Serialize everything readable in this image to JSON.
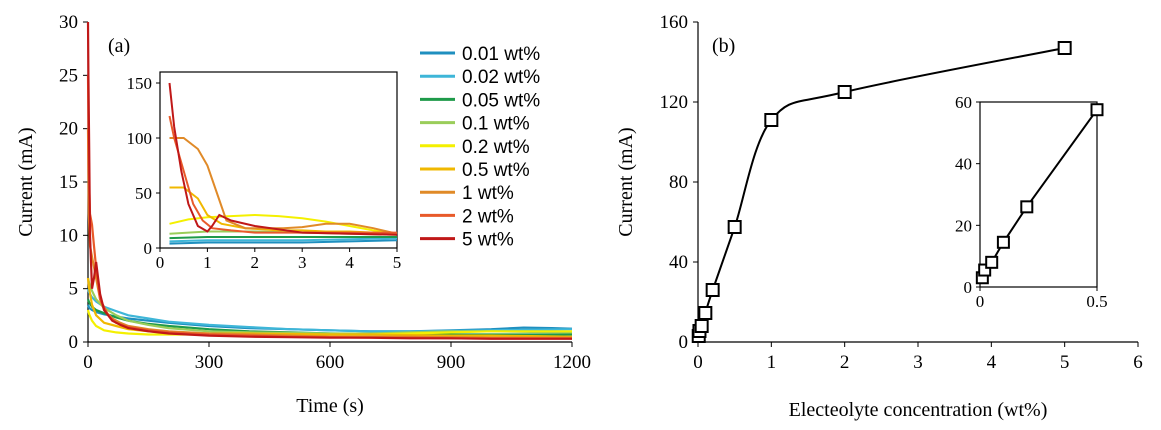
{
  "chart_data": [
    {
      "panel_label": "(a)",
      "type": "line",
      "xlabel": "Time (s)",
      "ylabel": "Current (mA)",
      "xlim": [
        0,
        1200
      ],
      "ylim": [
        0,
        30
      ],
      "xticks": [
        0,
        300,
        600,
        900,
        1200
      ],
      "yticks": [
        0,
        5,
        10,
        15,
        20,
        25,
        30
      ],
      "legend_position": "top-right",
      "series": [
        {
          "name": "0.01 wt%",
          "color": "#1f8fbf",
          "x": [
            0,
            3,
            10,
            20,
            40,
            70,
            100,
            150,
            200,
            300,
            400,
            500,
            600,
            700,
            800,
            900,
            1000,
            1080,
            1150,
            1200
          ],
          "y": [
            3.5,
            3.2,
            3.0,
            2.8,
            2.6,
            2.4,
            2.2,
            2.0,
            1.8,
            1.5,
            1.3,
            1.2,
            1.1,
            1.0,
            1.0,
            1.1,
            1.2,
            1.35,
            1.3,
            1.25
          ]
        },
        {
          "name": "0.02 wt%",
          "color": "#3eb6d8",
          "x": [
            0,
            3,
            10,
            20,
            40,
            70,
            100,
            150,
            200,
            300,
            400,
            500,
            600,
            700,
            800,
            900,
            1000,
            1100,
            1200
          ],
          "y": [
            5.0,
            4.6,
            4.2,
            3.8,
            3.3,
            2.9,
            2.5,
            2.2,
            1.9,
            1.6,
            1.4,
            1.2,
            1.1,
            1.0,
            1.0,
            1.05,
            1.1,
            1.15,
            1.2
          ]
        },
        {
          "name": "0.05 wt%",
          "color": "#1e9a4a",
          "x": [
            0,
            3,
            10,
            20,
            40,
            70,
            100,
            150,
            200,
            300,
            400,
            500,
            600,
            700,
            800,
            900,
            1000,
            1100,
            1200
          ],
          "y": [
            4.0,
            3.7,
            3.3,
            3.0,
            2.7,
            2.3,
            2.0,
            1.7,
            1.5,
            1.2,
            1.0,
            0.9,
            0.8,
            0.75,
            0.7,
            0.7,
            0.7,
            0.7,
            0.7
          ]
        },
        {
          "name": "0.1 wt%",
          "color": "#9acd5a",
          "x": [
            0,
            3,
            10,
            20,
            40,
            70,
            100,
            150,
            200,
            300,
            400,
            500,
            600,
            700,
            800,
            900,
            1000,
            1100,
            1200
          ],
          "y": [
            6.0,
            5.5,
            4.8,
            4.0,
            3.2,
            2.5,
            2.0,
            1.6,
            1.3,
            1.0,
            0.9,
            0.85,
            0.8,
            0.8,
            0.9,
            1.0,
            1.0,
            0.95,
            0.9
          ]
        },
        {
          "name": "0.2 wt%",
          "color": "#f4f000",
          "x": [
            0,
            3,
            10,
            20,
            40,
            70,
            100,
            150,
            200,
            300,
            400,
            500,
            600,
            700,
            800,
            900,
            1000,
            1100,
            1200
          ],
          "y": [
            3.0,
            2.6,
            2.0,
            1.5,
            1.1,
            0.9,
            0.8,
            0.7,
            0.7,
            0.7,
            0.7,
            0.7,
            0.7,
            0.7,
            0.8,
            0.9,
            1.0,
            1.0,
            1.0
          ]
        },
        {
          "name": "0.5 wt%",
          "color": "#f0b800",
          "x": [
            0,
            3,
            10,
            20,
            40,
            70,
            100,
            150,
            200,
            300,
            400,
            500,
            600,
            700,
            800,
            900,
            1000,
            1100,
            1200
          ],
          "y": [
            6.0,
            5.0,
            3.5,
            2.5,
            1.8,
            1.5,
            1.2,
            1.0,
            0.9,
            0.8,
            0.8,
            0.75,
            0.7,
            0.7,
            0.65,
            0.6,
            0.6,
            0.55,
            0.5
          ]
        },
        {
          "name": "1 wt%",
          "color": "#e08a28",
          "x": [
            0,
            2,
            5,
            10,
            20,
            30,
            40,
            60,
            80,
            100,
            150,
            200,
            300,
            400,
            500,
            600,
            700,
            800,
            900,
            1000,
            1100,
            1200
          ],
          "y": [
            20.0,
            12.0,
            9.0,
            8.0,
            6.0,
            4.0,
            3.0,
            2.2,
            1.8,
            1.5,
            1.2,
            1.0,
            0.8,
            0.7,
            0.6,
            0.5,
            0.5,
            0.5,
            0.45,
            0.4,
            0.4,
            0.4
          ]
        },
        {
          "name": "2 wt%",
          "color": "#e85a2a",
          "x": [
            0,
            2,
            5,
            10,
            15,
            20,
            30,
            50,
            70,
            100,
            150,
            200,
            300,
            400,
            500,
            600,
            700,
            800,
            900,
            1000,
            1100,
            1200
          ],
          "y": [
            25.0,
            16.0,
            12.0,
            11.0,
            9.0,
            7.0,
            4.0,
            2.5,
            1.8,
            1.4,
            1.1,
            0.9,
            0.7,
            0.6,
            0.5,
            0.45,
            0.4,
            0.4,
            0.35,
            0.35,
            0.35,
            0.35
          ]
        },
        {
          "name": "5 wt%",
          "color": "#c01818",
          "x": [
            0,
            1,
            3,
            5,
            10,
            15,
            20,
            30,
            40,
            60,
            80,
            100,
            150,
            200,
            300,
            400,
            500,
            600,
            700,
            800,
            900,
            1000,
            1100,
            1200
          ],
          "y": [
            30.0,
            25.0,
            18.0,
            10.0,
            5.0,
            6.0,
            7.5,
            4.5,
            3.0,
            2.0,
            1.6,
            1.3,
            1.0,
            0.8,
            0.6,
            0.5,
            0.45,
            0.4,
            0.4,
            0.35,
            0.35,
            0.3,
            0.3,
            0.3
          ]
        }
      ],
      "inset": {
        "xlim": [
          0,
          5
        ],
        "ylim": [
          0,
          160
        ],
        "xticks": [
          0,
          1,
          2,
          3,
          4,
          5
        ],
        "yticks": [
          0,
          50,
          100,
          150
        ],
        "series": [
          {
            "name": "0.01 wt%",
            "x": [
              0.2,
              1,
              2,
              3,
              4,
              5
            ],
            "y": [
              4,
              5,
              5,
              5,
              6,
              7
            ]
          },
          {
            "name": "0.02 wt%",
            "x": [
              0.2,
              1,
              2,
              3,
              4,
              5
            ],
            "y": [
              6,
              7,
              7,
              7,
              8,
              9
            ]
          },
          {
            "name": "0.05 wt%",
            "x": [
              0.2,
              1,
              2,
              3,
              4,
              5
            ],
            "y": [
              9,
              10,
              10,
              10,
              10,
              10
            ]
          },
          {
            "name": "0.1 wt%",
            "x": [
              0.2,
              1,
              2,
              3,
              4,
              5
            ],
            "y": [
              13,
              15,
              15,
              14,
              13,
              12
            ]
          },
          {
            "name": "0.2 wt%",
            "x": [
              0.2,
              0.6,
              1,
              1.5,
              2,
              2.5,
              3,
              3.5,
              4,
              4.5,
              5
            ],
            "y": [
              22,
              26,
              28,
              29,
              30,
              29,
              27,
              24,
              20,
              16,
              13
            ]
          },
          {
            "name": "0.5 wt%",
            "x": [
              0.2,
              0.5,
              0.8,
              1,
              1.3,
              1.8,
              2.5,
              3,
              3.5,
              4,
              4.5,
              5
            ],
            "y": [
              55,
              55,
              45,
              30,
              22,
              18,
              16,
              16,
              15,
              15,
              14,
              13
            ]
          },
          {
            "name": "1 wt%",
            "x": [
              0.2,
              0.5,
              0.8,
              1,
              1.2,
              1.4,
              1.8,
              2.2,
              2.6,
              3,
              3.5,
              4,
              4.5,
              5
            ],
            "y": [
              100,
              100,
              90,
              75,
              50,
              25,
              18,
              18,
              18,
              19,
              22,
              22,
              18,
              13
            ]
          },
          {
            "name": "2 wt%",
            "x": [
              0.2,
              0.3,
              0.5,
              0.7,
              0.9,
              1.1,
              1.5,
              2,
              3,
              4,
              5
            ],
            "y": [
              120,
              100,
              70,
              40,
              25,
              18,
              16,
              14,
              14,
              14,
              14
            ]
          },
          {
            "name": "5 wt%",
            "x": [
              0.2,
              0.3,
              0.45,
              0.6,
              0.8,
              1,
              1.1,
              1.25,
              1.5,
              2,
              3,
              4,
              5
            ],
            "y": [
              150,
              110,
              70,
              40,
              20,
              15,
              20,
              30,
              25,
              20,
              14,
              13,
              12
            ]
          }
        ]
      }
    },
    {
      "panel_label": "(b)",
      "type": "line",
      "xlabel": "Electeolyte concentration (wt%)",
      "ylabel": "Current (mA)",
      "xlim": [
        0,
        6
      ],
      "ylim": [
        0,
        160
      ],
      "xticks": [
        0,
        1,
        2,
        3,
        4,
        5,
        6
      ],
      "yticks": [
        0,
        40,
        80,
        120,
        160
      ],
      "series": [
        {
          "marker": "square",
          "x": [
            0.01,
            0.02,
            0.05,
            0.1,
            0.2,
            0.5,
            1,
            2,
            5
          ],
          "y": [
            3,
            5.5,
            8,
            14.5,
            26,
            57.5,
            111,
            125,
            147
          ]
        }
      ],
      "inset": {
        "xlim": [
          0,
          0.5
        ],
        "ylim": [
          0,
          60
        ],
        "xticks": [
          0,
          0.5
        ],
        "yticks": [
          0,
          20,
          40,
          60
        ],
        "series": [
          {
            "marker": "square",
            "x": [
              0.01,
              0.02,
              0.05,
              0.1,
              0.2,
              0.5
            ],
            "y": [
              3,
              5.5,
              8,
              14.5,
              26,
              57.5
            ]
          }
        ]
      }
    }
  ]
}
